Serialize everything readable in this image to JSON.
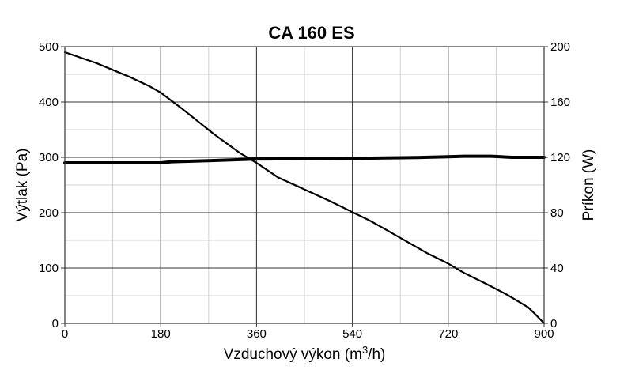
{
  "chart_data": {
    "type": "line",
    "title": "CA 160 ES",
    "xlabel_main": "Vzduchový výkon (m",
    "xlabel_sup": "3",
    "xlabel_end": "/h)",
    "ylabel_left": "Výtlak (Pa)",
    "ylabel_right": "Príkon (W)",
    "xlim": [
      0,
      900
    ],
    "ylim_left": [
      0,
      500
    ],
    "ylim_right": [
      0,
      200
    ],
    "x_ticks": [
      "0",
      "180",
      "360",
      "540",
      "720",
      "900"
    ],
    "y_left_ticks": [
      "0",
      "100",
      "200",
      "300",
      "400",
      "500"
    ],
    "y_right_ticks": [
      "0",
      "40",
      "80",
      "120",
      "160",
      "200"
    ],
    "grid": true,
    "series": [
      {
        "axis": "left",
        "x": [
          0,
          60,
          120,
          160,
          180,
          220,
          280,
          330,
          360,
          400,
          450,
          500,
          540,
          570,
          600,
          640,
          680,
          720,
          750,
          790,
          830,
          870,
          885,
          900
        ],
        "values": [
          490,
          470,
          446,
          428,
          417,
          388,
          342,
          307,
          290,
          264,
          242,
          220,
          201,
          187,
          171,
          149,
          127,
          108,
          91,
          72,
          52,
          29,
          15,
          0
        ]
      },
      {
        "axis": "right",
        "x": [
          0,
          60,
          120,
          180,
          200,
          270,
          360,
          450,
          540,
          600,
          660,
          720,
          750,
          800,
          840,
          900
        ],
        "values": [
          116,
          116,
          116,
          116,
          116.8,
          117.6,
          118.8,
          119,
          119.2,
          119.6,
          119.8,
          120.4,
          120.8,
          120.8,
          120,
          120
        ]
      }
    ]
  }
}
